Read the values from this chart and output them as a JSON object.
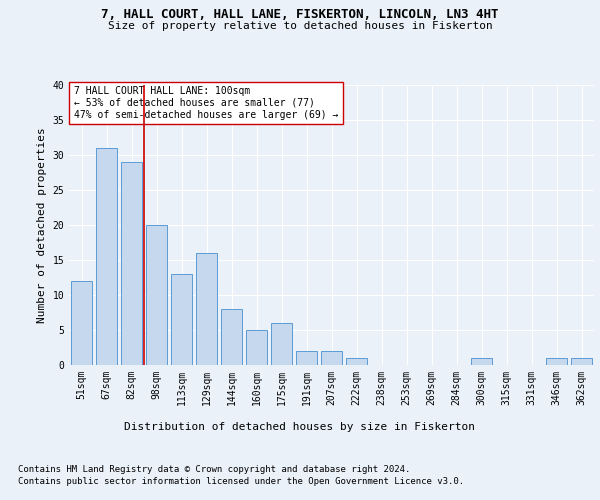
{
  "title": "7, HALL COURT, HALL LANE, FISKERTON, LINCOLN, LN3 4HT",
  "subtitle": "Size of property relative to detached houses in Fiskerton",
  "xlabel": "Distribution of detached houses by size in Fiskerton",
  "ylabel": "Number of detached properties",
  "categories": [
    "51sqm",
    "67sqm",
    "82sqm",
    "98sqm",
    "113sqm",
    "129sqm",
    "144sqm",
    "160sqm",
    "175sqm",
    "191sqm",
    "207sqm",
    "222sqm",
    "238sqm",
    "253sqm",
    "269sqm",
    "284sqm",
    "300sqm",
    "315sqm",
    "331sqm",
    "346sqm",
    "362sqm"
  ],
  "values": [
    12,
    31,
    29,
    20,
    13,
    16,
    8,
    5,
    6,
    2,
    2,
    1,
    0,
    0,
    0,
    0,
    1,
    0,
    0,
    1,
    1
  ],
  "bar_color": "#c5d8ed",
  "bar_edge_color": "#5b9bd5",
  "reference_line_color": "#cc0000",
  "reference_line_x": 2.5,
  "annotation_text": "7 HALL COURT HALL LANE: 100sqm\n← 53% of detached houses are smaller (77)\n47% of semi-detached houses are larger (69) →",
  "annotation_box_color": "#ffffff",
  "annotation_box_edge_color": "#cc0000",
  "ylim": [
    0,
    40
  ],
  "yticks": [
    0,
    5,
    10,
    15,
    20,
    25,
    30,
    35,
    40
  ],
  "footer_line1": "Contains HM Land Registry data © Crown copyright and database right 2024.",
  "footer_line2": "Contains public sector information licensed under the Open Government Licence v3.0.",
  "background_color": "#eaf1f9",
  "plot_background_color": "#eaf1f9",
  "grid_color": "#ffffff",
  "title_fontsize": 9,
  "subtitle_fontsize": 8,
  "axis_label_fontsize": 8,
  "tick_fontsize": 7,
  "annotation_fontsize": 7,
  "footer_fontsize": 6.5
}
